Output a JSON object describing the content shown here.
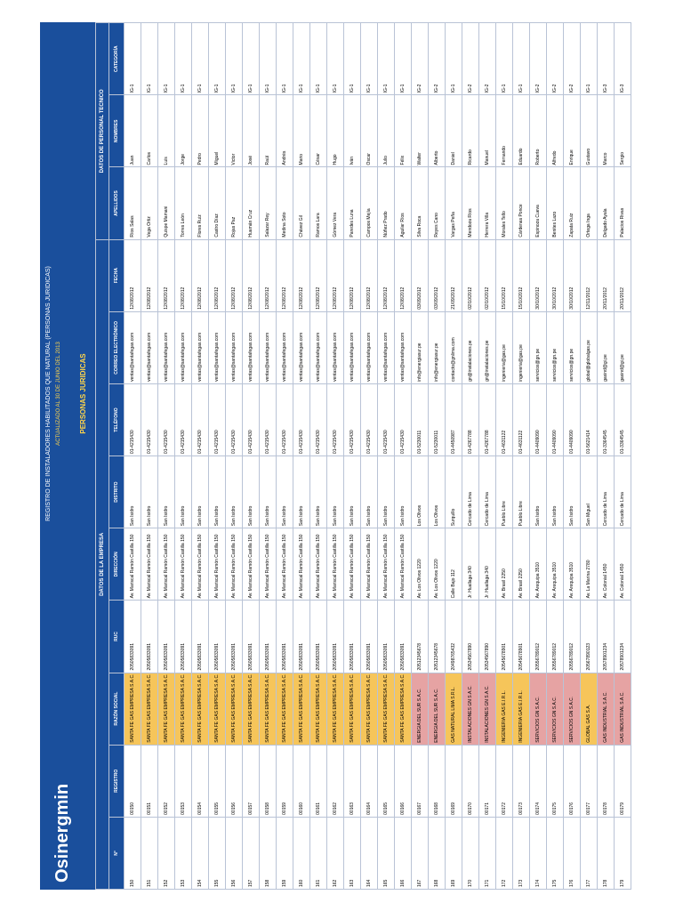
{
  "header": {
    "logo": "Osinergmin",
    "title": "REGISTRO DE INSTALADORES HABILITADOS QUE NATURAL (PERSONAS JURIDICAS)",
    "subtitle": "ACTUALIZADO AL 30 DE JUNIO DEL 2013",
    "section": "PERSONAS JURIDICAS"
  },
  "groups": {
    "company": "DATOS DE LA EMPRESA",
    "technical": "DATOS DE PERSONAL TECNICO"
  },
  "table": {
    "columns": [
      "N°",
      "REGISTRO",
      "RAZÓN SOCIAL",
      "RUC",
      "DIRECCIÓN",
      "DISTRITO",
      "TELÉFONO",
      "CORREO ELECTRÓNICO",
      "FECHA",
      "APELLIDOS",
      "NOMBRES",
      "CATEGORÍA"
    ],
    "rows": [
      [
        "150",
        "00150",
        "SANTA FE GAS EMPRESA S.A.C.",
        "20505833091",
        "Av. Mariscal Ramón Castilla 150",
        "San Isidro",
        "01-4215430",
        "ventas@santafegas.com",
        "12/08/2012",
        "Ríos Salas",
        "Juan",
        "IG-1"
      ],
      [
        "151",
        "00151",
        "SANTA FE GAS EMPRESA S.A.C.",
        "20505833091",
        "Av. Mariscal Ramón Castilla 150",
        "San Isidro",
        "01-4215430",
        "ventas@santafegas.com",
        "12/08/2012",
        "Vega Ortiz",
        "Carlos",
        "IG-1"
      ],
      [
        "152",
        "00152",
        "SANTA FE GAS EMPRESA S.A.C.",
        "20505833091",
        "Av. Mariscal Ramón Castilla 150",
        "San Isidro",
        "01-4215430",
        "ventas@santafegas.com",
        "12/08/2012",
        "Quispe Mamani",
        "Luis",
        "IG-1"
      ],
      [
        "153",
        "00153",
        "SANTA FE GAS EMPRESA S.A.C.",
        "20505833091",
        "Av. Mariscal Ramón Castilla 150",
        "San Isidro",
        "01-4215430",
        "ventas@santafegas.com",
        "12/08/2012",
        "Torres León",
        "Jorge",
        "IG-1"
      ],
      [
        "154",
        "00154",
        "SANTA FE GAS EMPRESA S.A.C.",
        "20505833091",
        "Av. Mariscal Ramón Castilla 150",
        "San Isidro",
        "01-4215430",
        "ventas@santafegas.com",
        "12/08/2012",
        "Flores Ruiz",
        "Pedro",
        "IG-1"
      ],
      [
        "155",
        "00155",
        "SANTA FE GAS EMPRESA S.A.C.",
        "20505833091",
        "Av. Mariscal Ramón Castilla 150",
        "San Isidro",
        "01-4215430",
        "ventas@santafegas.com",
        "12/08/2012",
        "Castro Díaz",
        "Miguel",
        "IG-1"
      ],
      [
        "156",
        "00156",
        "SANTA FE GAS EMPRESA S.A.C.",
        "20505833091",
        "Av. Mariscal Ramón Castilla 150",
        "San Isidro",
        "01-4215430",
        "ventas@santafegas.com",
        "12/08/2012",
        "Rojas Paz",
        "Victor",
        "IG-1"
      ],
      [
        "157",
        "00157",
        "SANTA FE GAS EMPRESA S.A.C.",
        "20505833091",
        "Av. Mariscal Ramón Castilla 150",
        "San Isidro",
        "01-4215430",
        "ventas@santafegas.com",
        "12/08/2012",
        "Huamán Cruz",
        "José",
        "IG-1"
      ],
      [
        "158",
        "00158",
        "SANTA FE GAS EMPRESA S.A.C.",
        "20505833091",
        "Av. Mariscal Ramón Castilla 150",
        "San Isidro",
        "01-4215430",
        "ventas@santafegas.com",
        "12/08/2012",
        "Salazar Rey",
        "Raúl",
        "IG-1"
      ],
      [
        "159",
        "00159",
        "SANTA FE GAS EMPRESA S.A.C.",
        "20505833091",
        "Av. Mariscal Ramón Castilla 150",
        "San Isidro",
        "01-4215430",
        "ventas@santafegas.com",
        "12/08/2012",
        "Medina Soto",
        "Andrés",
        "IG-1"
      ],
      [
        "160",
        "00160",
        "SANTA FE GAS EMPRESA S.A.C.",
        "20505833091",
        "Av. Mariscal Ramón Castilla 150",
        "San Isidro",
        "01-4215430",
        "ventas@santafegas.com",
        "12/08/2012",
        "Chávez Gil",
        "Mario",
        "IG-1"
      ],
      [
        "161",
        "00161",
        "SANTA FE GAS EMPRESA S.A.C.",
        "20505833091",
        "Av. Mariscal Ramón Castilla 150",
        "San Isidro",
        "01-4215430",
        "ventas@santafegas.com",
        "12/08/2012",
        "Ramos Lara",
        "César",
        "IG-1"
      ],
      [
        "162",
        "00162",
        "SANTA FE GAS EMPRESA S.A.C.",
        "20505833091",
        "Av. Mariscal Ramón Castilla 150",
        "San Isidro",
        "01-4215430",
        "ventas@santafegas.com",
        "12/08/2012",
        "Gómez Vera",
        "Hugo",
        "IG-1"
      ],
      [
        "163",
        "00163",
        "SANTA FE GAS EMPRESA S.A.C.",
        "20505833091",
        "Av. Mariscal Ramón Castilla 150",
        "San Isidro",
        "01-4215430",
        "ventas@santafegas.com",
        "12/08/2012",
        "Paredes Luna",
        "Iván",
        "IG-1"
      ],
      [
        "164",
        "00164",
        "SANTA FE GAS EMPRESA S.A.C.",
        "20505833091",
        "Av. Mariscal Ramón Castilla 150",
        "San Isidro",
        "01-4215430",
        "ventas@santafegas.com",
        "12/08/2012",
        "Campos Mejía",
        "Oscar",
        "IG-1"
      ],
      [
        "165",
        "00165",
        "SANTA FE GAS EMPRESA S.A.C.",
        "20505833091",
        "Av. Mariscal Ramón Castilla 150",
        "San Isidro",
        "01-4215430",
        "ventas@santafegas.com",
        "12/08/2012",
        "Núñez Prado",
        "Julio",
        "IG-1"
      ],
      [
        "166",
        "00166",
        "SANTA FE GAS EMPRESA S.A.C.",
        "20505833091",
        "Av. Mariscal Ramón Castilla 150",
        "San Isidro",
        "01-4215430",
        "ventas@santafegas.com",
        "12/08/2012",
        "Aguilar Ríos",
        "Félix",
        "IG-1"
      ],
      [
        "167",
        "00167",
        "ENERGIA DEL SUR S.A.C.",
        "20512345678",
        "Av. Los Olivos 1220",
        "Los Olivos",
        "01-5230011",
        "info@energiasur.pe",
        "03/09/2012",
        "Silva Roca",
        "Walter",
        "IG-2"
      ],
      [
        "168",
        "00168",
        "ENERGIA DEL SUR S.A.C.",
        "20512345678",
        "Av. Los Olivos 1220",
        "Los Olivos",
        "01-5230011",
        "info@energiasur.pe",
        "03/09/2012",
        "Reyes Cano",
        "Alberto",
        "IG-2"
      ],
      [
        "169",
        "00169",
        "GAS NATURAL LIMA S.R.L.",
        "20498765432",
        "Calle Bajo 112",
        "Surquillo",
        "01-4450987",
        "contacto@gnlima.com",
        "21/09/2012",
        "Vargas Peña",
        "Daniel",
        "IG-1"
      ],
      [
        "170",
        "00170",
        "INSTALACIONES GN S.A.C.",
        "20534567890",
        "Jr. Huallaga 340",
        "Cercado de Lima",
        "01-4267788",
        "gn@instalaciones.pe",
        "02/10/2012",
        "Mendoza Ríos",
        "Ricardo",
        "IG-2"
      ],
      [
        "171",
        "00171",
        "INSTALACIONES GN S.A.C.",
        "20534567890",
        "Jr. Huallaga 340",
        "Cercado de Lima",
        "01-4267788",
        "gn@instalaciones.pe",
        "02/10/2012",
        "Herrera Villa",
        "Manuel",
        "IG-2"
      ],
      [
        "172",
        "00172",
        "INGENIERIA GAS E.I.R.L.",
        "20545678901",
        "Av. Brasil 2250",
        "Pueblo Libre",
        "01-4631122",
        "ingenieria@gas.pe",
        "15/10/2012",
        "Morales Tello",
        "Fernando",
        "IG-1"
      ],
      [
        "173",
        "00173",
        "INGENIERIA GAS E.I.R.L.",
        "20545678901",
        "Av. Brasil 2250",
        "Pueblo Libre",
        "01-4631122",
        "ingenieria@gas.pe",
        "15/10/2012",
        "Cárdenas Ponce",
        "Eduardo",
        "IG-1"
      ],
      [
        "174",
        "00174",
        "SERVICIOS GN S.A.C.",
        "20556789012",
        "Av. Arequipa 3510",
        "San Isidro",
        "01-4409090",
        "servicios@gn.pe",
        "30/10/2012",
        "Espinoza Cueva",
        "Roberto",
        "IG-2"
      ],
      [
        "175",
        "00175",
        "SERVICIOS GN S.A.C.",
        "20556789012",
        "Av. Arequipa 3510",
        "San Isidro",
        "01-4409090",
        "servicios@gn.pe",
        "30/10/2012",
        "Benites Lazo",
        "Alfredo",
        "IG-2"
      ],
      [
        "176",
        "00176",
        "SERVICIOS GN S.A.C.",
        "20556789012",
        "Av. Arequipa 3510",
        "San Isidro",
        "01-4409090",
        "servicios@gn.pe",
        "30/10/2012",
        "Zapata Ruiz",
        "Enrique",
        "IG-2"
      ],
      [
        "177",
        "00177",
        "GLOBAL GAS S.A.",
        "20567890123",
        "Av. La Marina 2780",
        "San Miguel",
        "01-5621414",
        "global@globalgas.pe",
        "12/11/2012",
        "Ortega Inga",
        "Gustavo",
        "IG-1"
      ],
      [
        "178",
        "00178",
        "GAS INDUSTRIAL S.A.C.",
        "20578901234",
        "Av. Colonial 1450",
        "Cercado de Lima",
        "01-3364545",
        "gasind@gi.pe",
        "20/11/2012",
        "Delgado Ayala",
        "Marco",
        "IG-3"
      ],
      [
        "179",
        "00179",
        "GAS INDUSTRIAL S.A.C.",
        "20578901234",
        "Av. Colonial 1450",
        "Cercado de Lima",
        "01-3364545",
        "gasind@gi.pe",
        "20/11/2012",
        "Palacios Rivas",
        "Sergio",
        "IG-3"
      ]
    ]
  }
}
